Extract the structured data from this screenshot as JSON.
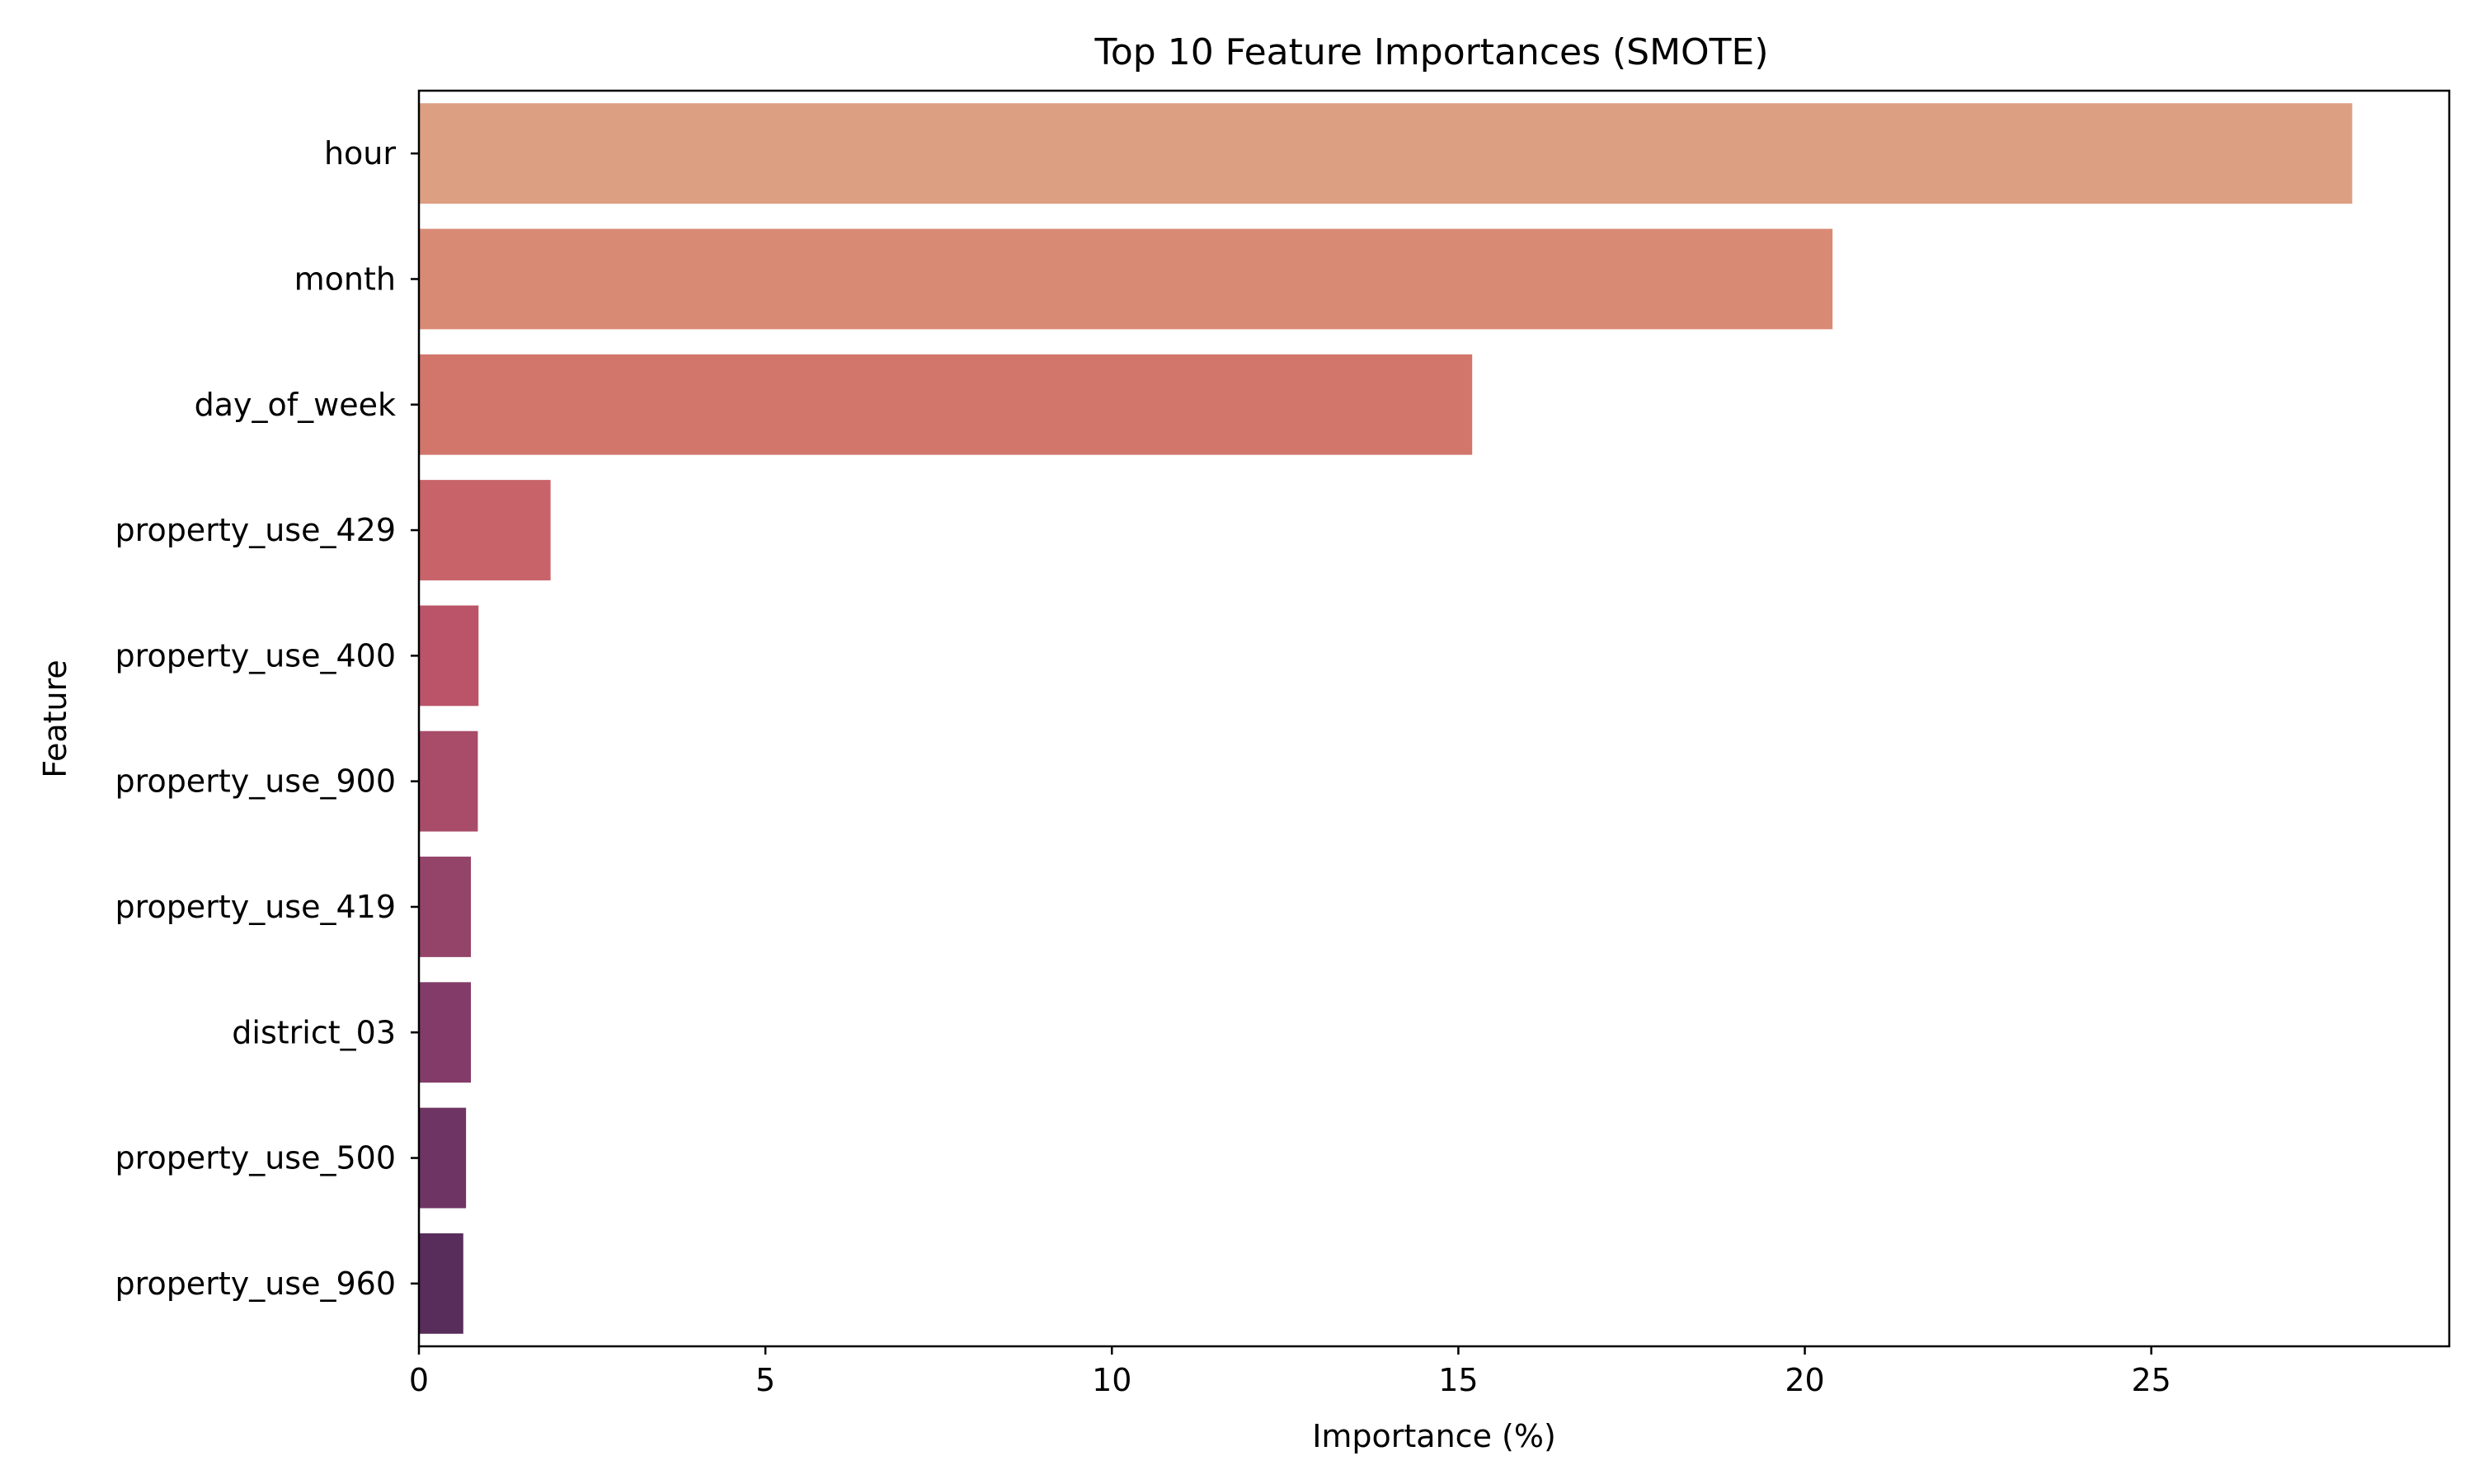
{
  "chart_data": {
    "type": "bar",
    "orientation": "horizontal",
    "title": "Top 10 Feature Importances (SMOTE)",
    "xlabel": "Importance (%)",
    "ylabel": "Feature",
    "xlim": [
      0,
      29.3
    ],
    "xticks": [
      0,
      5,
      10,
      15,
      20,
      25
    ],
    "grid": false,
    "categories": [
      "hour",
      "month",
      "day_of_week",
      "property_use_429",
      "property_use_400",
      "property_use_900",
      "property_use_419",
      "district_03",
      "property_use_500",
      "property_use_960"
    ],
    "values": [
      27.9,
      20.4,
      15.2,
      1.9,
      0.86,
      0.85,
      0.75,
      0.75,
      0.68,
      0.64
    ],
    "colors": [
      "#dd9f82",
      "#d98a75",
      "#d2766c",
      "#c8636a",
      "#bb5468",
      "#a84c6a",
      "#954469",
      "#833c69",
      "#6e3463",
      "#582d5c"
    ]
  }
}
